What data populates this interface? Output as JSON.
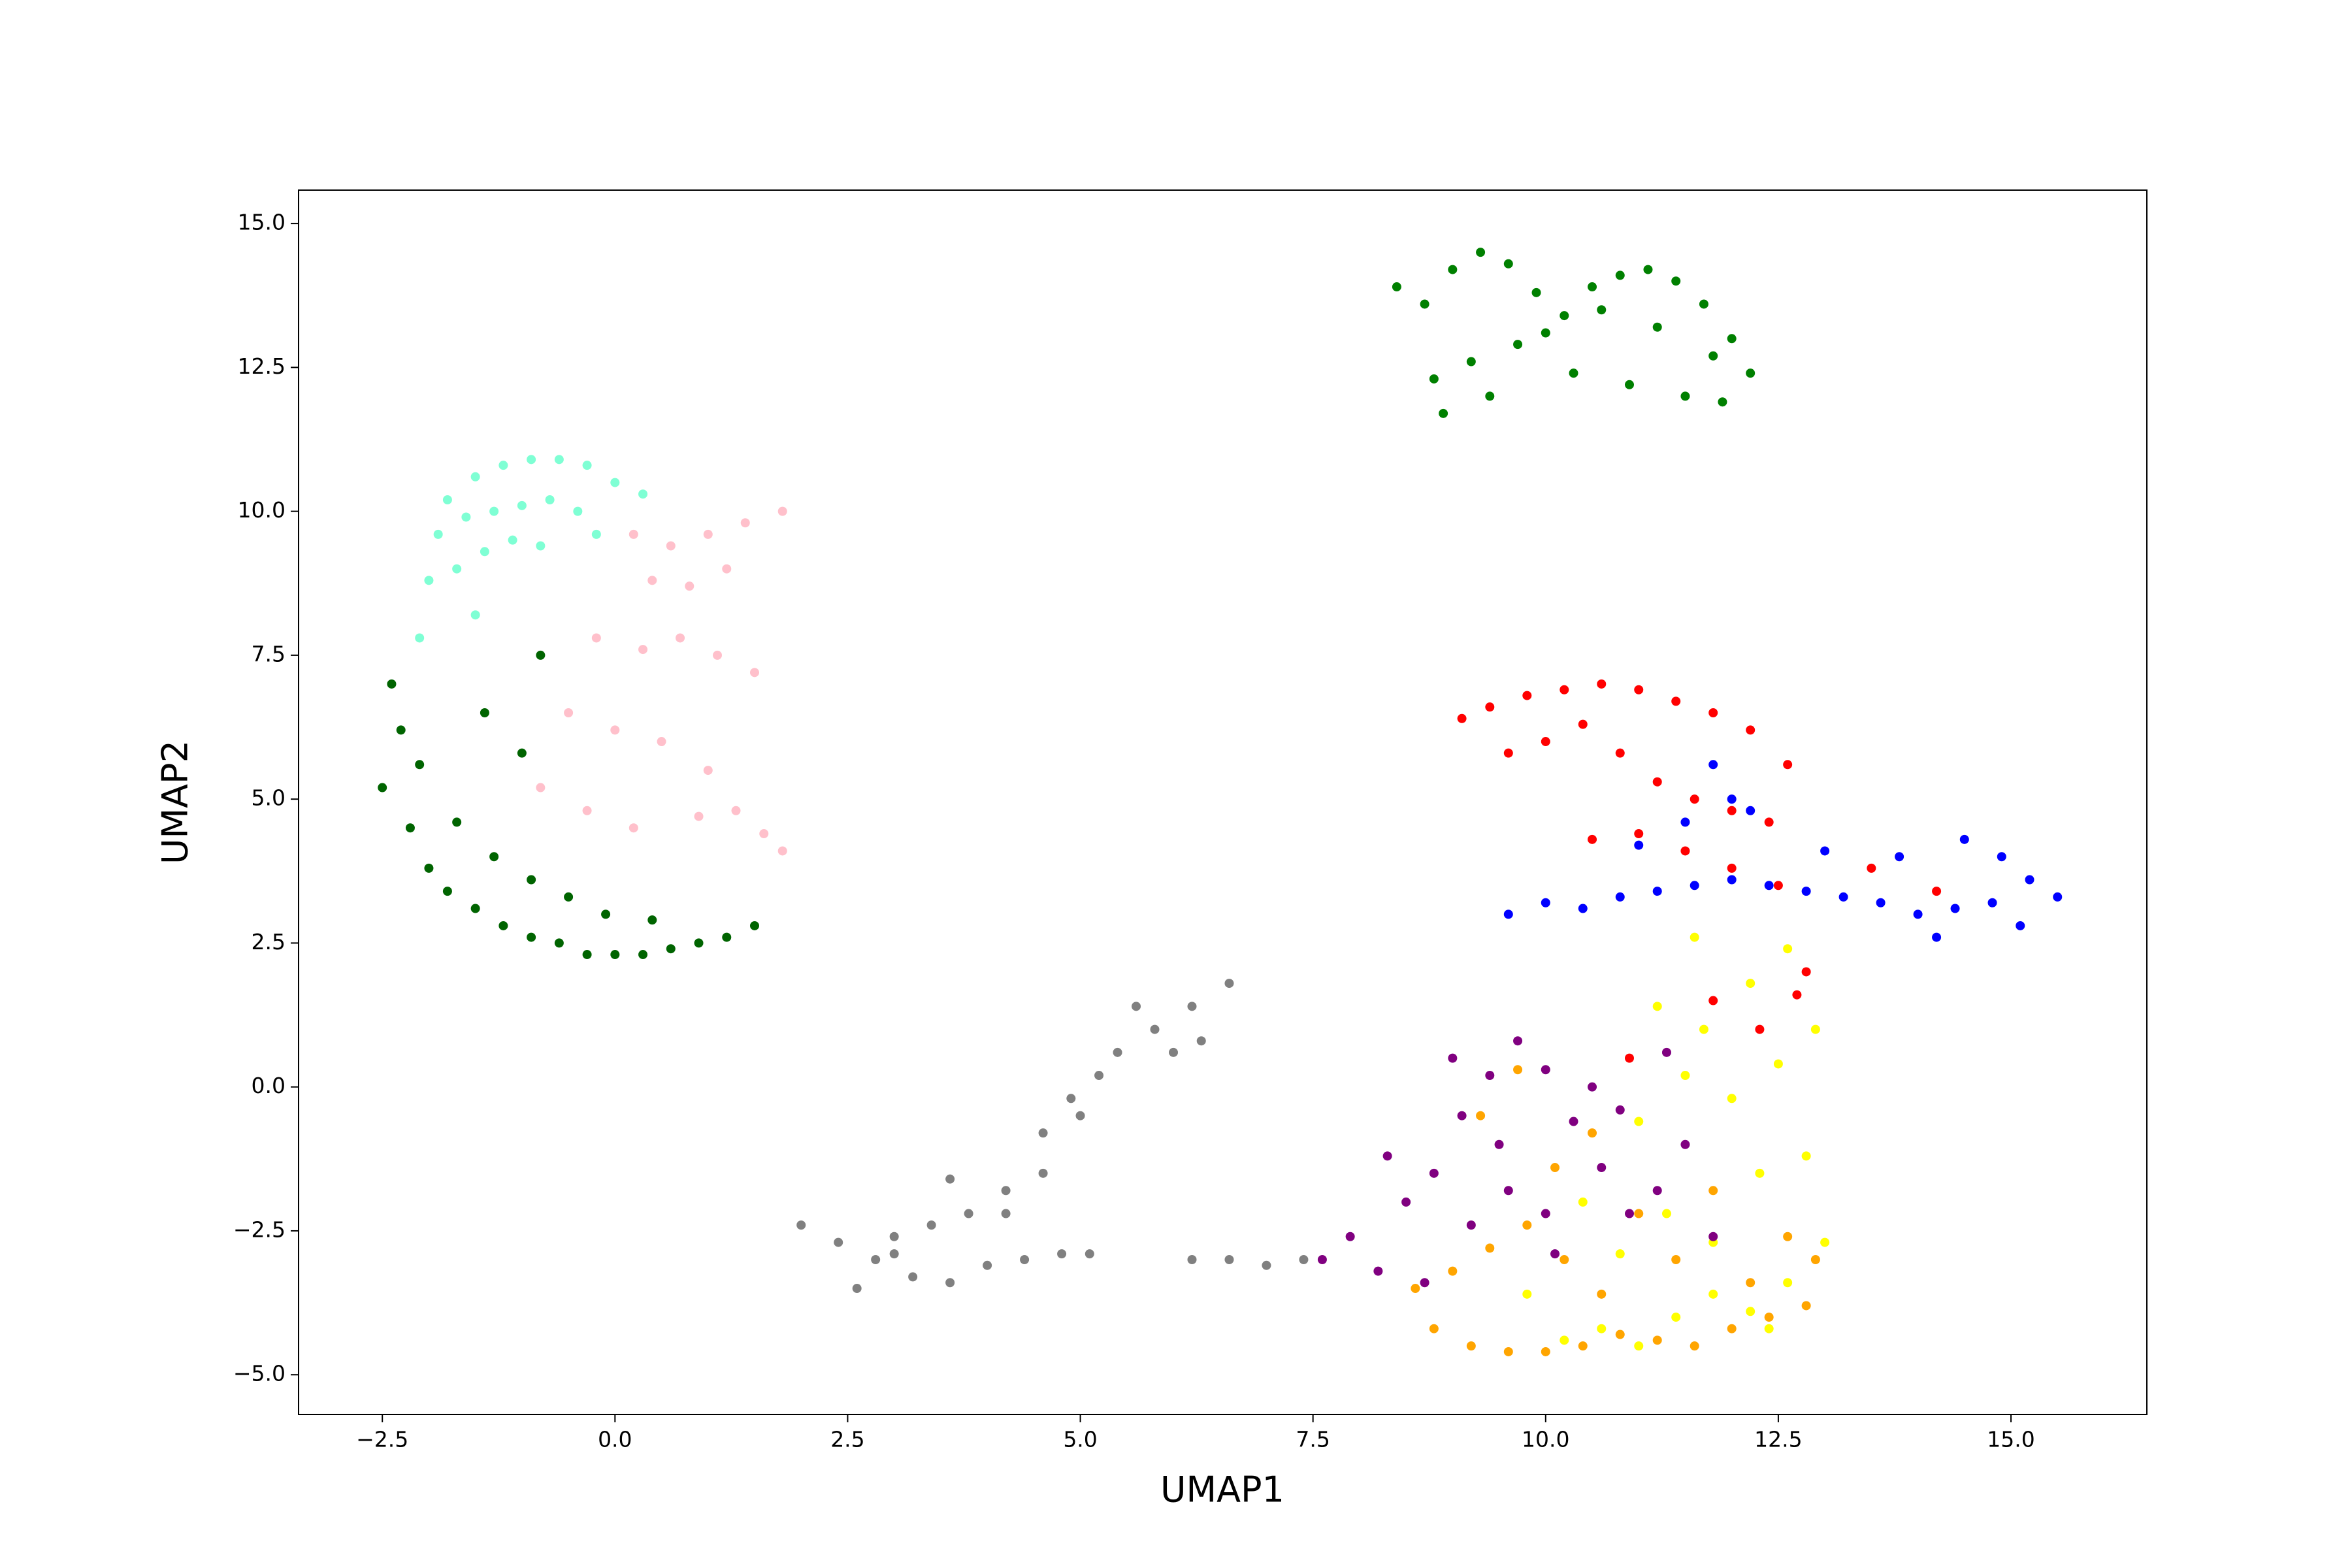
{
  "chart_data": {
    "type": "scatter",
    "xlabel": "UMAP1",
    "ylabel": "UMAP2",
    "xlim": [
      -3.4,
      16.46
    ],
    "ylim": [
      -5.69,
      15.58
    ],
    "xticks": [
      {
        "value": -2.5,
        "label": "−2.5"
      },
      {
        "value": 0,
        "label": "0.0"
      },
      {
        "value": 2.5,
        "label": "2.5"
      },
      {
        "value": 5,
        "label": "5.0"
      },
      {
        "value": 7.5,
        "label": "7.5"
      },
      {
        "value": 10,
        "label": "10.0"
      },
      {
        "value": 12.5,
        "label": "12.5"
      },
      {
        "value": 15,
        "label": "15.0"
      }
    ],
    "yticks": [
      {
        "value": -5,
        "label": "−5.0"
      },
      {
        "value": -2.5,
        "label": "−2.5"
      },
      {
        "value": 0,
        "label": "0.0"
      },
      {
        "value": 2.5,
        "label": "2.5"
      },
      {
        "value": 5,
        "label": "5.0"
      },
      {
        "value": 7.5,
        "label": "7.5"
      },
      {
        "value": 10,
        "label": "10.0"
      },
      {
        "value": 12.5,
        "label": "12.5"
      },
      {
        "value": 15,
        "label": "15.0"
      }
    ],
    "series": [
      {
        "color": "#7fffd4",
        "x": [
          -1.8,
          -1.5,
          -1.2,
          -0.9,
          -0.6,
          -0.3,
          0.0,
          0.3,
          -1.9,
          -1.6,
          -1.3,
          -1.0,
          -0.7,
          -0.4,
          -2.0,
          -1.7,
          -1.4,
          -1.1,
          -0.8,
          -0.2,
          -2.1,
          -1.5
        ],
        "y": [
          10.2,
          10.6,
          10.8,
          10.9,
          10.9,
          10.8,
          10.5,
          10.3,
          9.6,
          9.9,
          10.0,
          10.1,
          10.2,
          10.0,
          8.8,
          9.0,
          9.3,
          9.5,
          9.4,
          9.6,
          7.8,
          8.2
        ]
      },
      {
        "color": "#ffc0cb",
        "x": [
          0.2,
          0.6,
          1.0,
          1.4,
          1.8,
          0.4,
          0.8,
          1.2,
          -0.2,
          0.3,
          0.7,
          1.1,
          1.5,
          1.8,
          -0.5,
          0.0,
          0.5,
          1.0,
          -0.8,
          -0.3,
          0.2,
          0.9,
          1.3,
          1.6
        ],
        "y": [
          9.6,
          9.4,
          9.6,
          9.8,
          10.0,
          8.8,
          8.7,
          9.0,
          7.8,
          7.6,
          7.8,
          7.5,
          7.2,
          4.1,
          6.5,
          6.2,
          6.0,
          5.5,
          5.2,
          4.8,
          4.5,
          4.7,
          4.8,
          4.4
        ]
      },
      {
        "color": "#006400",
        "x": [
          -2.4,
          -2.3,
          -2.5,
          -2.2,
          -2.0,
          -1.8,
          -1.5,
          -1.2,
          -0.9,
          -0.6,
          -0.3,
          0.0,
          0.3,
          0.6,
          0.9,
          1.2,
          1.5,
          -2.1,
          -1.7,
          -1.3,
          -0.9,
          -0.5,
          -0.1,
          0.4,
          -1.4,
          -1.0,
          -0.8
        ],
        "y": [
          7.0,
          6.2,
          5.2,
          4.5,
          3.8,
          3.4,
          3.1,
          2.8,
          2.6,
          2.5,
          2.3,
          2.3,
          2.3,
          2.4,
          2.5,
          2.6,
          2.8,
          5.6,
          4.6,
          4.0,
          3.6,
          3.3,
          3.0,
          2.9,
          6.5,
          5.8,
          7.5
        ]
      },
      {
        "color": "#008000",
        "x": [
          8.4,
          8.7,
          9.0,
          9.3,
          9.6,
          9.9,
          10.2,
          10.5,
          10.8,
          11.1,
          11.4,
          11.7,
          12.0,
          12.2,
          8.8,
          9.2,
          9.7,
          10.3,
          10.9,
          11.5,
          11.9,
          8.9,
          9.4,
          10.0,
          10.6,
          11.2,
          11.8
        ],
        "y": [
          13.9,
          13.6,
          14.2,
          14.5,
          14.3,
          13.8,
          13.4,
          13.9,
          14.1,
          14.2,
          14.0,
          13.6,
          13.0,
          12.4,
          12.3,
          12.6,
          12.9,
          12.4,
          12.2,
          12.0,
          11.9,
          11.7,
          12.0,
          13.1,
          13.5,
          13.2,
          12.7
        ]
      },
      {
        "color": "#808080",
        "x": [
          2.0,
          2.4,
          2.8,
          3.2,
          3.6,
          4.0,
          4.4,
          2.6,
          3.0,
          3.4,
          3.8,
          4.2,
          4.6,
          4.2,
          4.6,
          4.9,
          5.2,
          5.0,
          5.4,
          5.8,
          6.2,
          6.6,
          5.6,
          6.0,
          6.3,
          4.8,
          5.1,
          6.2,
          6.6,
          7.0,
          7.4,
          3.6,
          3.0
        ],
        "y": [
          -2.4,
          -2.7,
          -3.0,
          -3.3,
          -3.4,
          -3.1,
          -3.0,
          -3.5,
          -2.6,
          -2.4,
          -2.2,
          -1.8,
          -1.5,
          -2.2,
          -0.8,
          -0.2,
          0.2,
          -0.5,
          0.6,
          1.0,
          1.4,
          1.8,
          1.4,
          0.6,
          0.8,
          -2.9,
          -2.9,
          -3.0,
          -3.0,
          -3.1,
          -3.0,
          -1.6,
          -2.9
        ]
      },
      {
        "color": "#ff0000",
        "x": [
          9.1,
          9.4,
          9.8,
          10.2,
          10.6,
          11.0,
          11.4,
          11.8,
          12.2,
          12.6,
          9.6,
          10.0,
          10.4,
          10.8,
          11.2,
          11.6,
          12.0,
          12.4,
          10.5,
          11.0,
          11.5,
          12.0,
          12.5,
          12.8,
          11.8,
          12.3,
          12.7,
          10.9,
          13.5,
          14.2
        ],
        "y": [
          6.4,
          6.6,
          6.8,
          6.9,
          7.0,
          6.9,
          6.7,
          6.5,
          6.2,
          5.6,
          5.8,
          6.0,
          6.3,
          5.8,
          5.3,
          5.0,
          4.8,
          4.6,
          4.3,
          4.4,
          4.1,
          3.8,
          3.5,
          2.0,
          1.5,
          1.0,
          1.6,
          0.5,
          3.8,
          3.4
        ]
      },
      {
        "color": "#0000ff",
        "x": [
          9.6,
          10.0,
          10.4,
          10.8,
          11.2,
          11.6,
          12.0,
          12.4,
          12.8,
          13.2,
          13.6,
          14.0,
          14.4,
          14.8,
          15.2,
          15.5,
          11.0,
          11.5,
          12.0,
          14.5,
          14.9,
          15.1,
          13.0,
          13.8,
          14.2,
          11.8,
          12.2
        ],
        "y": [
          3.0,
          3.2,
          3.1,
          3.3,
          3.4,
          3.5,
          3.6,
          3.5,
          3.4,
          3.3,
          3.2,
          3.0,
          3.1,
          3.2,
          3.6,
          3.3,
          4.2,
          4.6,
          5.0,
          4.3,
          4.0,
          2.8,
          4.1,
          4.0,
          2.6,
          5.6,
          4.8
        ]
      },
      {
        "color": "#ffa500",
        "x": [
          8.8,
          9.2,
          9.6,
          10.0,
          10.4,
          10.8,
          11.2,
          11.6,
          12.0,
          12.4,
          12.8,
          9.0,
          9.4,
          9.8,
          10.2,
          10.6,
          11.0,
          11.4,
          11.8,
          12.2,
          12.6,
          9.3,
          9.7,
          10.1,
          10.5,
          12.9,
          8.6
        ],
        "y": [
          -4.2,
          -4.5,
          -4.6,
          -4.6,
          -4.5,
          -4.3,
          -4.4,
          -4.5,
          -4.2,
          -4.0,
          -3.8,
          -3.2,
          -2.8,
          -2.4,
          -3.0,
          -3.6,
          -2.2,
          -3.0,
          -1.8,
          -3.4,
          -2.6,
          -0.5,
          0.3,
          -1.4,
          -0.8,
          -3.0,
          -3.5
        ]
      },
      {
        "color": "#ffff00",
        "x": [
          10.2,
          10.6,
          11.0,
          11.4,
          11.8,
          12.2,
          12.6,
          13.0,
          10.8,
          11.3,
          11.8,
          12.3,
          12.8,
          11.0,
          11.5,
          12.0,
          12.5,
          12.9,
          11.2,
          11.7,
          12.2,
          12.6,
          9.8,
          10.4,
          11.6,
          12.4
        ],
        "y": [
          -4.4,
          -4.2,
          -4.5,
          -4.0,
          -3.6,
          -3.9,
          -3.4,
          -2.7,
          -2.9,
          -2.2,
          -2.7,
          -1.5,
          -1.2,
          -0.6,
          0.2,
          -0.2,
          0.4,
          1.0,
          1.4,
          1.0,
          1.8,
          2.4,
          -3.6,
          -2.0,
          2.6,
          -4.2
        ]
      },
      {
        "color": "#800080",
        "x": [
          7.6,
          7.9,
          8.2,
          8.5,
          8.8,
          9.1,
          9.4,
          9.7,
          10.0,
          10.3,
          10.6,
          10.9,
          11.2,
          11.5,
          11.8,
          8.3,
          8.7,
          9.2,
          9.6,
          10.1,
          10.5,
          9.0,
          9.5,
          10.0,
          10.8,
          11.3
        ],
        "y": [
          -3.0,
          -2.6,
          -3.2,
          -2.0,
          -1.5,
          -0.5,
          0.2,
          0.8,
          0.3,
          -0.6,
          -1.4,
          -2.2,
          -1.8,
          -1.0,
          -2.6,
          -1.2,
          -3.4,
          -2.4,
          -1.8,
          -2.9,
          0.0,
          0.5,
          -1.0,
          -2.2,
          -0.4,
          0.6
        ]
      }
    ]
  }
}
